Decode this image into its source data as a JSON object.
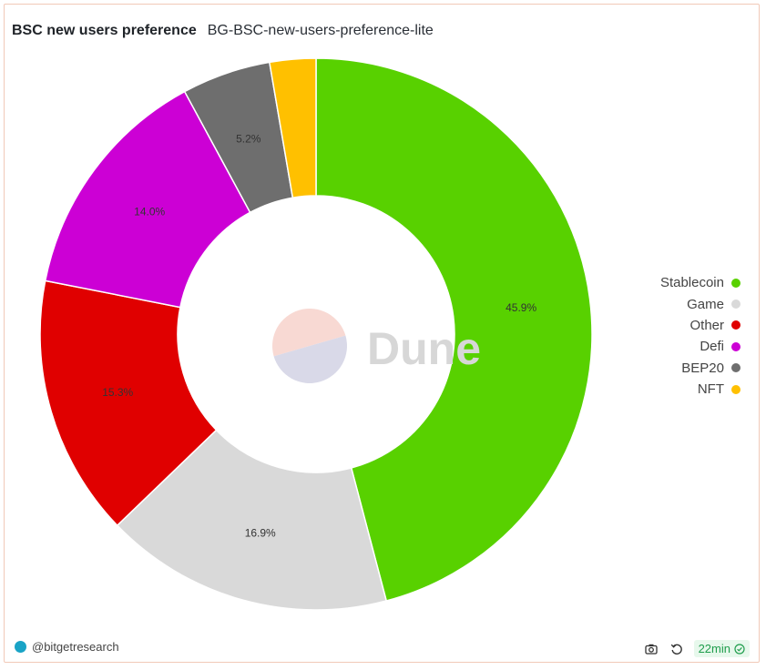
{
  "header": {
    "title": "BSC new users preference",
    "subtitle": "BG-BSC-new-users-preference-lite"
  },
  "watermark": {
    "text": "Dune"
  },
  "footer": {
    "author": "@bitgetresearch",
    "refresh_badge": "22min",
    "icons": [
      "camera-icon",
      "refresh-icon",
      "check-circle-icon"
    ]
  },
  "chart_data": {
    "type": "pie",
    "donut": true,
    "title": "BSC new users preference",
    "subtitle": "BG-BSC-new-users-preference-lite",
    "legend_placement": "right",
    "slices": [
      {
        "label": "Stablecoin",
        "value": 45.9,
        "display": "45.9%",
        "color": "#58d100"
      },
      {
        "label": "Game",
        "value": 16.9,
        "display": "16.9%",
        "color": "#d9d9d9"
      },
      {
        "label": "Other",
        "value": 15.3,
        "display": "15.3%",
        "color": "#e00000"
      },
      {
        "label": "Defi",
        "value": 14.0,
        "display": "14.0%",
        "color": "#cc00d5"
      },
      {
        "label": "BEP20",
        "value": 5.2,
        "display": "5.2%",
        "color": "#6e6e6e"
      },
      {
        "label": "NFT",
        "value": 2.7,
        "display": "",
        "color": "#ffc000"
      }
    ]
  }
}
